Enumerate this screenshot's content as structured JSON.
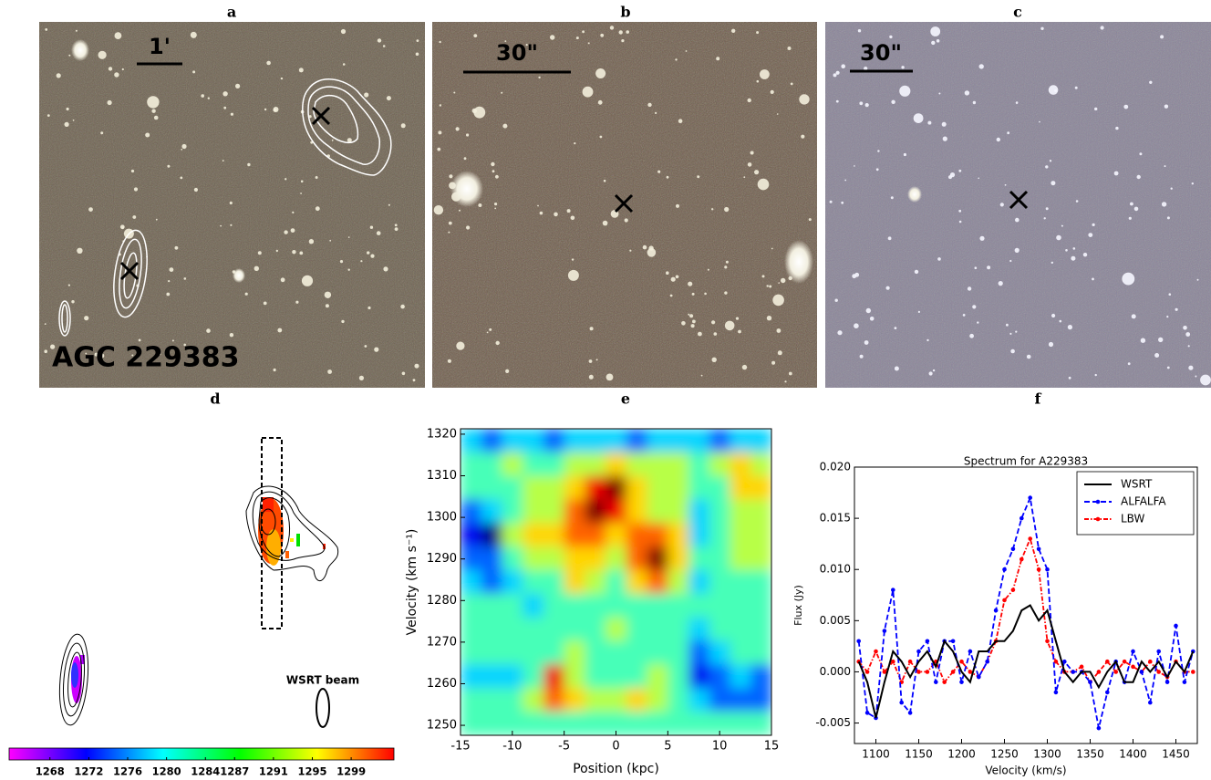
{
  "panel_labels": [
    "a",
    "b",
    "c",
    "d",
    "e",
    "f"
  ],
  "panel_a": {
    "scale_label": "1'",
    "galaxy_name": "AGC 229383"
  },
  "panel_b": {
    "scale_label": "30\""
  },
  "panel_c": {
    "scale_label": "30\""
  },
  "panel_d": {
    "beam_label": "WSRT beam"
  },
  "chart_data": [
    {
      "type": "colorbar",
      "colors": [
        "#ff00ff",
        "#0000ff",
        "#00ffff",
        "#00ff00",
        "#ffff00",
        "#ff0000"
      ],
      "xlim": [
        1263.8,
        1303.4
      ],
      "xticks": [
        1268,
        1272,
        1276,
        1280,
        1284,
        1287,
        1291,
        1295,
        1299
      ]
    },
    {
      "type": "heatmap",
      "xlabel": "Position (kpc)",
      "ylabel": "Velocity (km s⁻¹)",
      "x": [
        -14,
        -12,
        -10,
        -8,
        -6,
        -4,
        -2,
        0,
        2,
        4,
        6,
        8,
        10,
        12,
        14
      ],
      "y": [
        1318.5,
        1312.8,
        1307.1,
        1301.5,
        1295.8,
        1290.1,
        1284.5,
        1278.8,
        1273.1,
        1267.5,
        1261.8,
        1256.1,
        1250.5
      ],
      "z": [
        [
          3,
          2,
          3,
          3,
          2,
          3,
          3,
          3,
          2,
          3,
          3,
          3,
          2,
          3,
          3
        ],
        [
          4,
          4,
          5,
          4,
          4,
          5,
          5,
          6,
          5,
          5,
          5,
          4,
          5,
          6,
          5
        ],
        [
          4,
          4,
          4,
          5,
          5,
          6,
          8,
          9,
          6,
          5,
          5,
          4,
          4,
          6,
          6
        ],
        [
          2,
          3,
          4,
          5,
          5,
          7,
          9,
          8,
          6,
          5,
          5,
          3,
          4,
          5,
          5
        ],
        [
          1,
          0,
          5,
          6,
          6,
          7,
          7,
          6,
          7,
          7,
          6,
          3,
          4,
          5,
          5
        ],
        [
          2,
          2,
          4,
          5,
          5,
          6,
          6,
          5,
          7,
          9,
          6,
          4,
          4,
          5,
          5
        ],
        [
          3,
          2,
          3,
          4,
          4,
          6,
          5,
          4,
          6,
          7,
          5,
          3,
          4,
          4,
          4
        ],
        [
          4,
          4,
          4,
          3,
          4,
          4,
          4,
          4,
          4,
          4,
          4,
          4,
          4,
          4,
          4
        ],
        [
          4,
          4,
          4,
          4,
          4,
          4,
          4,
          5,
          4,
          4,
          4,
          3,
          4,
          4,
          4
        ],
        [
          4,
          4,
          4,
          4,
          4,
          5,
          4,
          4,
          4,
          4,
          4,
          2,
          3,
          4,
          4
        ],
        [
          3,
          3,
          3,
          4,
          8,
          5,
          4,
          4,
          4,
          5,
          4,
          1,
          2,
          3,
          2
        ],
        [
          4,
          4,
          4,
          5,
          7,
          6,
          5,
          5,
          6,
          5,
          4,
          3,
          2,
          2,
          2
        ],
        [
          4,
          4,
          4,
          4,
          4,
          4,
          4,
          4,
          4,
          4,
          4,
          4,
          4,
          4,
          4
        ]
      ],
      "xlim": [
        -15,
        15
      ],
      "ylim": [
        1247.6,
        1321.3
      ],
      "xticks": [
        -15,
        -10,
        -5,
        0,
        5,
        10,
        15
      ],
      "yticks": [
        1250,
        1260,
        1270,
        1280,
        1290,
        1300,
        1310,
        1320
      ]
    },
    {
      "type": "line",
      "title": "Spectrum for A229383",
      "xlabel": "Velocity (km/s)",
      "ylabel": "Flux (Jy)",
      "x": [
        1080,
        1090,
        1100,
        1110,
        1120,
        1130,
        1140,
        1150,
        1160,
        1170,
        1180,
        1190,
        1200,
        1210,
        1220,
        1230,
        1240,
        1250,
        1260,
        1270,
        1280,
        1290,
        1300,
        1310,
        1320,
        1330,
        1340,
        1350,
        1360,
        1370,
        1380,
        1390,
        1400,
        1410,
        1420,
        1430,
        1440,
        1450,
        1460,
        1470
      ],
      "series": [
        {
          "name": "WSRT",
          "color": "#000000",
          "style": "solid",
          "markers": false,
          "values": [
            0.001,
            -0.001,
            -0.0045,
            -0.001,
            0.002,
            0.001,
            -0.0005,
            0.001,
            0.002,
            0.0005,
            0.003,
            0.002,
            0.0,
            -0.001,
            0.002,
            0.002,
            0.003,
            0.003,
            0.004,
            0.006,
            0.0065,
            0.005,
            0.006,
            0.003,
            0.0,
            -0.001,
            0.0,
            0.0,
            -0.0015,
            0.0,
            0.001,
            -0.001,
            -0.001,
            0.001,
            0.0,
            0.001,
            -0.0005,
            0.001,
            0.0,
            0.002
          ]
        },
        {
          "name": "ALFALFA",
          "color": "#0000ff",
          "style": "dashed",
          "markers": true,
          "values": [
            0.003,
            -0.004,
            -0.0045,
            0.004,
            0.008,
            -0.003,
            -0.004,
            0.002,
            0.003,
            -0.001,
            0.003,
            0.003,
            -0.001,
            0.002,
            -0.0005,
            0.001,
            0.006,
            0.01,
            0.012,
            0.015,
            0.017,
            0.012,
            0.01,
            -0.002,
            0.001,
            0.0,
            0.0,
            -0.001,
            -0.0055,
            -0.002,
            0.001,
            -0.001,
            0.002,
            0.0,
            -0.003,
            0.002,
            -0.001,
            0.0045,
            -0.001,
            0.002
          ]
        },
        {
          "name": "LBW",
          "color": "#ff0000",
          "style": "dashdot",
          "markers": true,
          "values": [
            0.001,
            0.0,
            0.002,
            0.0,
            0.001,
            -0.001,
            0.001,
            0.0,
            0.0,
            0.001,
            -0.001,
            0.0,
            0.001,
            0.0,
            -0.0005,
            0.001,
            0.003,
            0.007,
            0.008,
            0.011,
            0.013,
            0.01,
            0.003,
            0.001,
            0.0,
            0.0,
            0.0005,
            -0.001,
            0.0,
            0.001,
            0.0,
            0.001,
            0.0005,
            0.0,
            0.001,
            0.0,
            -0.0005,
            0.001,
            0.0,
            0.0
          ]
        }
      ],
      "xlim": [
        1075,
        1475
      ],
      "ylim": [
        -0.007,
        0.02
      ],
      "xticks": [
        1100,
        1150,
        1200,
        1250,
        1300,
        1350,
        1400,
        1450
      ],
      "yticks": [
        {
          "value": -0.005,
          "label": "-0.005"
        },
        {
          "value": 0,
          "label": "0.000"
        },
        {
          "value": 0.005,
          "label": "0.005"
        },
        {
          "value": 0.01,
          "label": "0.010"
        },
        {
          "value": 0.015,
          "label": "0.015"
        },
        {
          "value": 0.02,
          "label": "0.020"
        }
      ],
      "legend": "upper right"
    }
  ]
}
